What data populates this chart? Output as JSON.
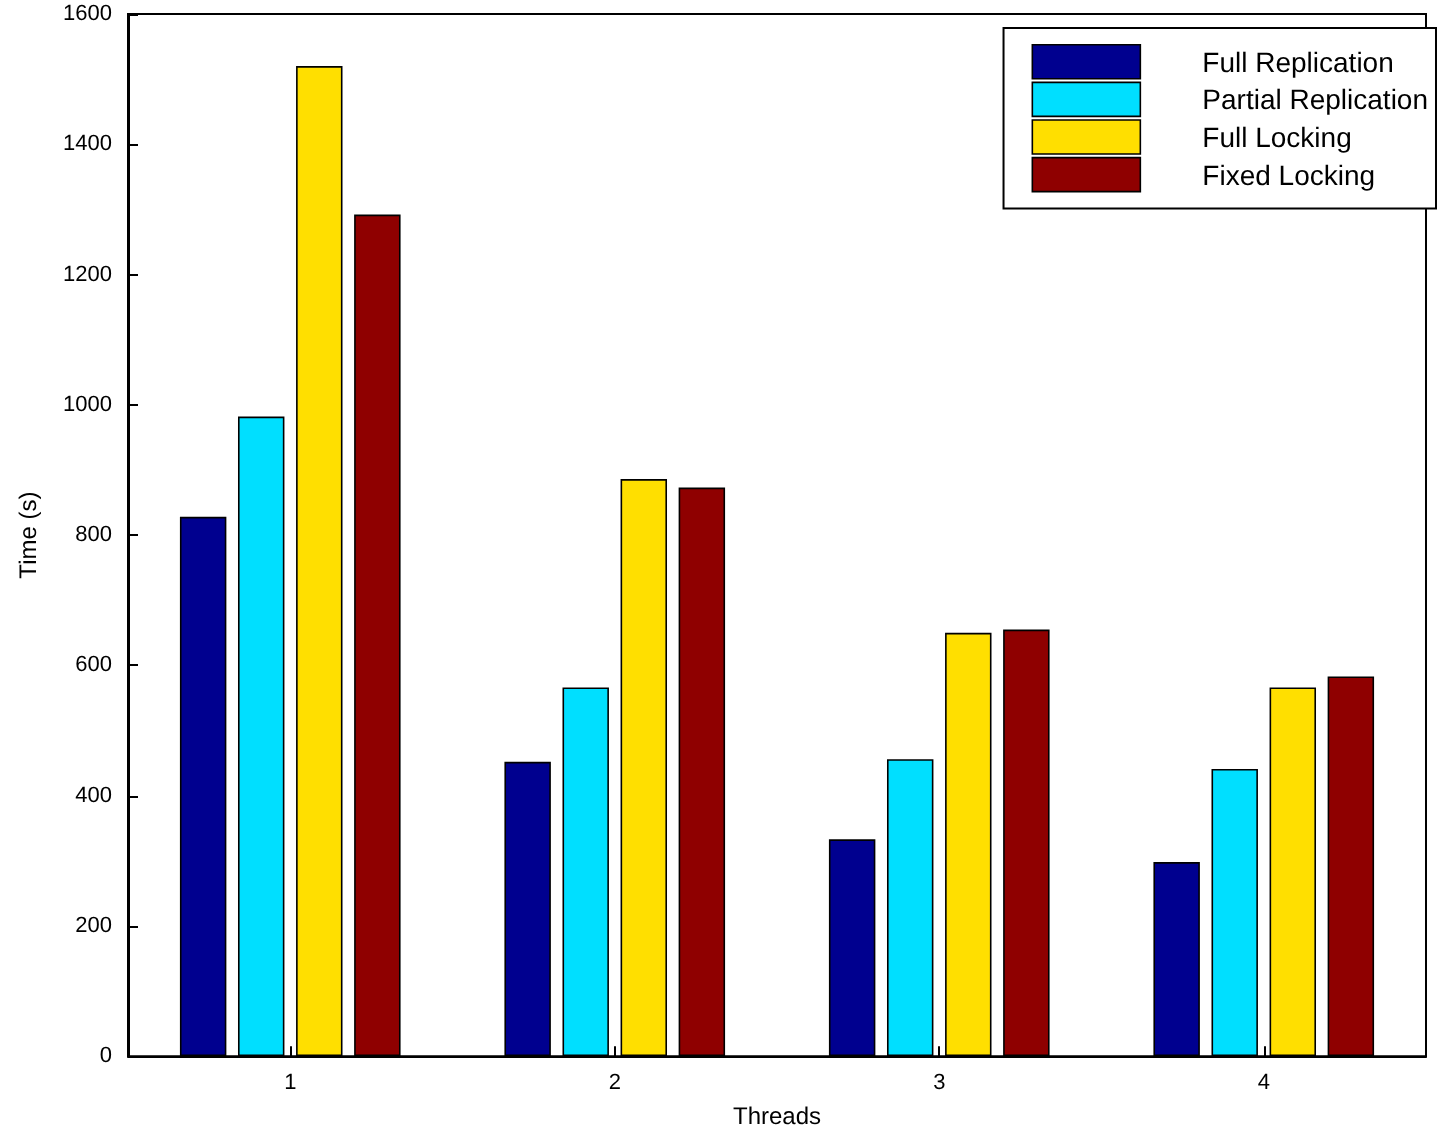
{
  "chart_data": {
    "type": "bar",
    "xlabel": "Threads",
    "ylabel": "Time (s)",
    "categories": [
      "1",
      "2",
      "3",
      "4"
    ],
    "series": [
      {
        "name": "Full Replication",
        "color": "#00008f",
        "values": [
          828,
          452,
          333,
          298
        ]
      },
      {
        "name": "Partial Replication",
        "color": "#00dfff",
        "values": [
          982,
          566,
          456,
          441
        ]
      },
      {
        "name": "Full Locking",
        "color": "#ffdf00",
        "values": [
          1520,
          886,
          650,
          566
        ]
      },
      {
        "name": "Fixed Locking",
        "color": "#8f0000",
        "values": [
          1292,
          873,
          655,
          583
        ]
      }
    ],
    "ylim": [
      0,
      1600
    ],
    "yticks": [
      0,
      200,
      400,
      600,
      800,
      1000,
      1200,
      1400,
      1600
    ],
    "grid": false,
    "legend": "top right"
  }
}
